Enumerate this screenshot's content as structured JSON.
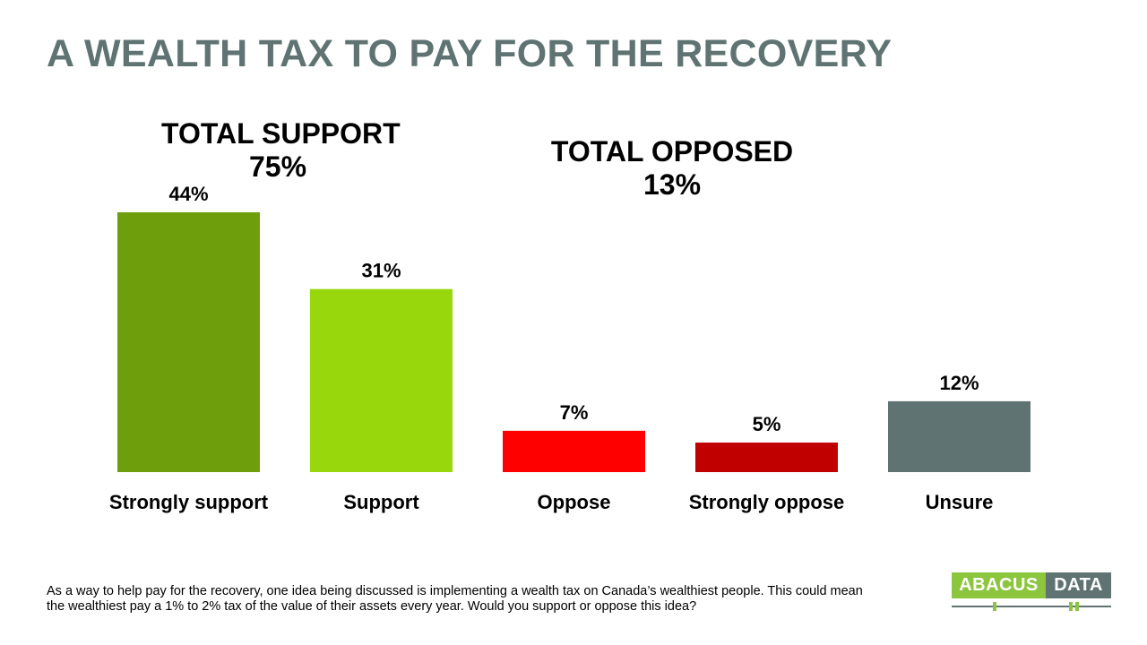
{
  "title": "A WEALTH TAX TO PAY FOR THE RECOVERY",
  "groups": {
    "support": {
      "label": "TOTAL SUPPORT",
      "value": "75%"
    },
    "opposed": {
      "label": "TOTAL OPPOSED",
      "value": "13%"
    }
  },
  "chart_data": {
    "type": "bar",
    "categories": [
      "Strongly support",
      "Support",
      "Oppose",
      "Strongly oppose",
      "Unsure"
    ],
    "values": [
      44,
      31,
      7,
      5,
      12
    ],
    "value_labels": [
      "44%",
      "31%",
      "7%",
      "5%",
      "12%"
    ],
    "colors": [
      "#6e9e0b",
      "#97d70b",
      "#ff0000",
      "#c00000",
      "#5f7472"
    ],
    "title": "A WEALTH TAX TO PAY FOR THE RECOVERY",
    "xlabel": "",
    "ylabel": "",
    "ylim": [
      0,
      44
    ],
    "grid": false,
    "legend": "none"
  },
  "question": "As a way to help pay for the recovery, one idea being discussed is implementing  a wealth tax on Canada’s wealthiest people. This could mean the wealthiest pay a 1% to 2% tax of the value of their assets every year. Would you support or oppose this idea?",
  "logo": {
    "left_text": "ABACUS",
    "right_text": "DATA",
    "accent": "#8cc63f",
    "base": "#5f7472"
  }
}
